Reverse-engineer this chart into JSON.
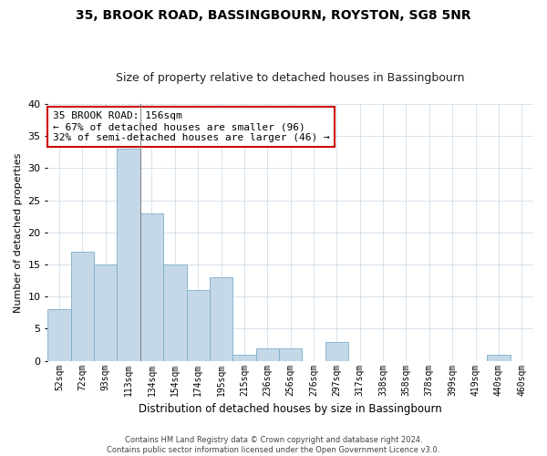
{
  "title": "35, BROOK ROAD, BASSINGBOURN, ROYSTON, SG8 5NR",
  "subtitle": "Size of property relative to detached houses in Bassingbourn",
  "xlabel": "Distribution of detached houses by size in Bassingbourn",
  "ylabel": "Number of detached properties",
  "categories": [
    "52sqm",
    "72sqm",
    "93sqm",
    "113sqm",
    "134sqm",
    "154sqm",
    "174sqm",
    "195sqm",
    "215sqm",
    "236sqm",
    "256sqm",
    "276sqm",
    "297sqm",
    "317sqm",
    "338sqm",
    "358sqm",
    "378sqm",
    "399sqm",
    "419sqm",
    "440sqm",
    "460sqm"
  ],
  "values": [
    8,
    17,
    15,
    33,
    23,
    15,
    11,
    13,
    1,
    2,
    2,
    0,
    3,
    0,
    0,
    0,
    0,
    0,
    0,
    1,
    0
  ],
  "bar_color": "#c5d8e8",
  "bar_edge_color": "#7aafc8",
  "annotation_text": "35 BROOK ROAD: 156sqm\n← 67% of detached houses are smaller (96)\n32% of semi-detached houses are larger (46) →",
  "annotation_box_color": "#ffffff",
  "annotation_box_edge": "#cc0000",
  "grid_color": "#c8d8e8",
  "background_color": "#ffffff",
  "footer1": "Contains HM Land Registry data © Crown copyright and database right 2024.",
  "footer2": "Contains public sector information licensed under the Open Government Licence v3.0.",
  "ylim": [
    0,
    40
  ],
  "yticks": [
    0,
    5,
    10,
    15,
    20,
    25,
    30,
    35,
    40
  ],
  "prop_line_idx": 3.5,
  "title_fontsize": 10,
  "subtitle_fontsize": 9,
  "ylabel_fontsize": 8,
  "xlabel_fontsize": 8.5,
  "tick_fontsize": 7,
  "annot_fontsize": 8,
  "footer_fontsize": 6
}
